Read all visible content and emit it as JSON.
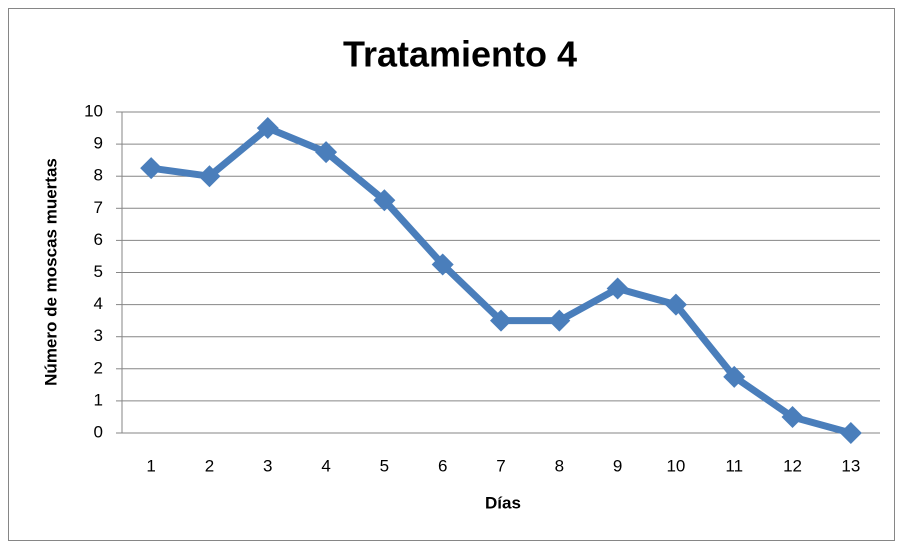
{
  "chart_data": {
    "type": "line",
    "title": "Tratamiento 4",
    "x_label": "Días",
    "y_label": "Número de moscas muertas",
    "categories": [
      1,
      2,
      3,
      4,
      5,
      6,
      7,
      8,
      9,
      10,
      11,
      12,
      13
    ],
    "values": [
      8.25,
      8,
      9.5,
      8.75,
      7.25,
      5.25,
      3.5,
      3.5,
      4.5,
      4,
      1.75,
      0.5,
      0
    ],
    "color": "#4a7ebb",
    "ylim": [
      0,
      10
    ],
    "yticks": [
      0,
      1,
      2,
      3,
      4,
      5,
      6,
      7,
      8,
      9,
      10
    ],
    "grid": true
  }
}
